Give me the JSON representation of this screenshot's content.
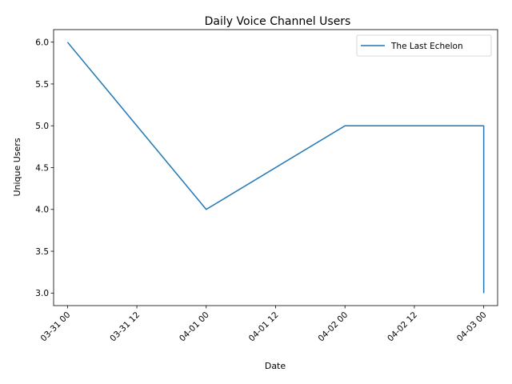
{
  "chart_data": {
    "type": "line",
    "title": "Daily Voice Channel Users",
    "xlabel": "Date",
    "ylabel": "Unique Users",
    "x_ticks": [
      "03-31 00",
      "03-31 12",
      "04-01 00",
      "04-01 12",
      "04-02 00",
      "04-02 12",
      "04-03 00"
    ],
    "y_ticks": [
      "3.0",
      "3.5",
      "4.0",
      "4.5",
      "5.0",
      "5.5",
      "6.0"
    ],
    "xlim": [
      "2024-03-30T21:36",
      "2024-04-03T02:24"
    ],
    "ylim": [
      2.85,
      6.15
    ],
    "grid": false,
    "legend_position": "top-right",
    "series": [
      {
        "name": "The Last Echelon",
        "color": "#1f77b4",
        "points": [
          {
            "x": "2024-03-31T00:00",
            "y": 6
          },
          {
            "x": "2024-04-01T00:00",
            "y": 4
          },
          {
            "x": "2024-04-02T00:00",
            "y": 5
          },
          {
            "x": "2024-04-03T00:00",
            "y": 5
          },
          {
            "x": "2024-04-03T00:00",
            "y": 3
          }
        ]
      }
    ]
  }
}
